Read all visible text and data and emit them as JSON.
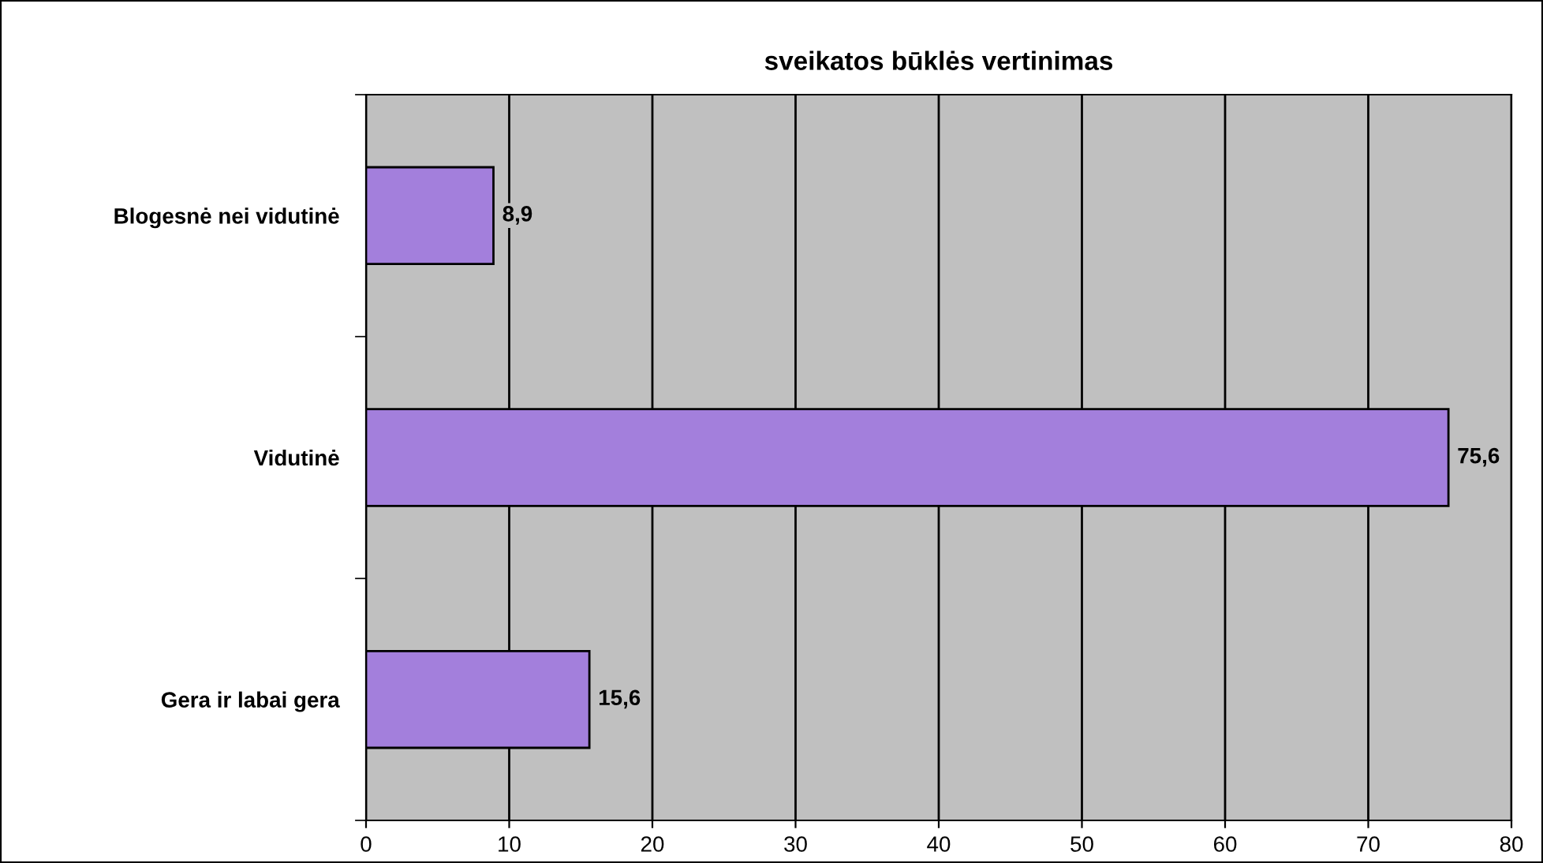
{
  "chart_data": {
    "type": "bar",
    "orientation": "horizontal",
    "title": "sveikatos būklės vertinimas",
    "categories": [
      "Blogesnė nei vidutinė",
      "Vidutinė",
      "Gera ir labai gera"
    ],
    "values": [
      8.9,
      75.6,
      15.6
    ],
    "color": "#a37fdc",
    "value_labels": [
      "8,9",
      "75,6",
      "15,6"
    ],
    "xlim": [
      0,
      80
    ],
    "xticks": [
      0,
      10,
      20,
      30,
      40,
      50,
      60,
      70,
      80
    ],
    "grid": "x"
  }
}
